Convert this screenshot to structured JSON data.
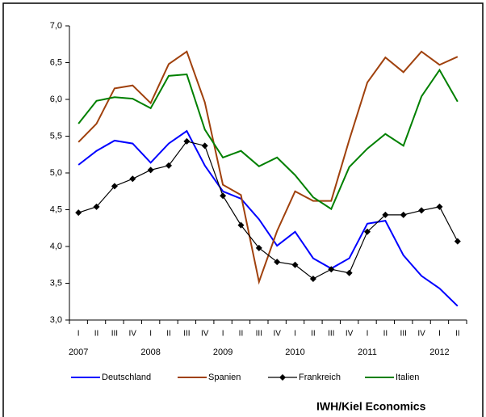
{
  "chart_data": {
    "type": "line",
    "categories": [
      "I",
      "II",
      "III",
      "IV",
      "I",
      "II",
      "III",
      "IV",
      "I",
      "II",
      "III",
      "IV",
      "I",
      "II",
      "III",
      "IV",
      "I",
      "II",
      "III",
      "IV",
      "I",
      "II"
    ],
    "years": [
      "2007",
      "2008",
      "2009",
      "2010",
      "2011",
      "2012"
    ],
    "ylim": [
      3,
      7
    ],
    "yticks": [
      {
        "value": 3,
        "label": "3,0"
      },
      {
        "value": 3.5,
        "label": "3,5"
      },
      {
        "value": 4,
        "label": "4,0"
      },
      {
        "value": 4.5,
        "label": "4,5"
      },
      {
        "value": 5,
        "label": "5,0"
      },
      {
        "value": 5.5,
        "label": "5,5"
      },
      {
        "value": 6,
        "label": "6,0"
      },
      {
        "value": 6.5,
        "label": "6,5"
      },
      {
        "value": 7,
        "label": "7,0"
      }
    ],
    "grid": false,
    "series": [
      {
        "name": "Deutschland",
        "color": "#0000ff",
        "values": [
          5.11,
          5.3,
          5.44,
          5.4,
          5.14,
          5.4,
          5.57,
          5.1,
          4.75,
          4.65,
          4.37,
          4.01,
          4.2,
          3.84,
          3.7,
          3.84,
          4.31,
          4.35,
          3.88,
          3.6,
          3.43,
          3.19
        ]
      },
      {
        "name": "Spanien",
        "color": "#a0410d",
        "values": [
          5.42,
          5.67,
          6.15,
          6.19,
          5.95,
          6.48,
          6.65,
          5.96,
          4.84,
          4.7,
          3.52,
          4.21,
          4.75,
          4.62,
          4.62,
          5.45,
          6.23,
          6.57,
          6.37,
          6.65,
          6.47,
          6.58
        ]
      },
      {
        "name": "Frankreich",
        "color": "#000000",
        "marker": "diamond",
        "values": [
          4.46,
          4.54,
          4.82,
          4.92,
          5.04,
          5.1,
          5.43,
          5.37,
          4.69,
          4.29,
          3.98,
          3.79,
          3.75,
          3.56,
          3.69,
          3.64,
          4.2,
          4.43,
          4.43,
          4.49,
          4.54,
          4.07
        ]
      },
      {
        "name": "Italien",
        "color": "#008000",
        "values": [
          5.67,
          5.98,
          6.03,
          6.01,
          5.88,
          6.32,
          6.34,
          5.59,
          5.21,
          5.3,
          5.09,
          5.21,
          4.97,
          4.67,
          4.51,
          5.08,
          5.33,
          5.53,
          5.37,
          6.04,
          6.4,
          5.97
        ]
      }
    ],
    "source": "IWH/Kiel Economics"
  }
}
